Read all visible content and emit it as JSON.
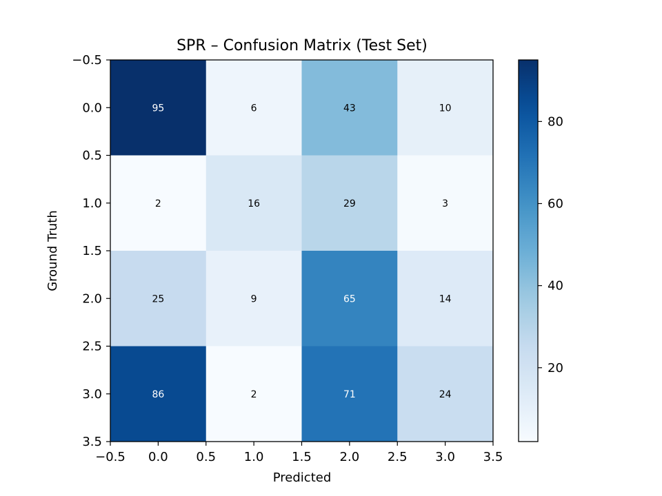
{
  "chart_data": {
    "type": "heatmap",
    "title": "SPR – Confusion Matrix (Test Set)",
    "xlabel": "Predicted",
    "ylabel": "Ground Truth",
    "rows": 4,
    "cols": 4,
    "values": [
      [
        95,
        6,
        43,
        10
      ],
      [
        2,
        16,
        29,
        3
      ],
      [
        25,
        9,
        65,
        14
      ],
      [
        86,
        2,
        71,
        24
      ]
    ],
    "xlim": [
      -0.5,
      3.5
    ],
    "ylim": [
      3.5,
      -0.5
    ],
    "xticks": [
      "−0.5",
      "0.0",
      "0.5",
      "1.0",
      "1.5",
      "2.0",
      "2.5",
      "3.0",
      "3.5"
    ],
    "yticks": [
      "−0.5",
      "0.0",
      "0.5",
      "1.0",
      "1.5",
      "2.0",
      "2.5",
      "3.0",
      "3.5"
    ],
    "colormap": "Blues",
    "color_range": [
      2,
      95
    ],
    "colorbar_ticks": [
      20,
      40,
      60,
      80
    ],
    "text_color_dark": "#000000",
    "text_color_light": "#ffffff"
  }
}
